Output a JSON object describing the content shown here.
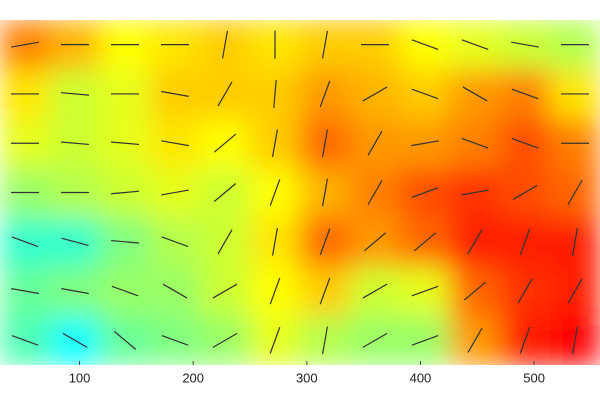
{
  "chart_data": {
    "type": "heatmap-quiver",
    "xlim": [
      30,
      558
    ],
    "xticks": [
      100,
      200,
      300,
      400,
      500
    ],
    "vlim": [
      0,
      1
    ],
    "colormap": [
      "#00ffff",
      "#80ff80",
      "#ffff00",
      "#ff8000",
      "#ff0000"
    ],
    "z": [
      [
        0.75,
        0.65,
        0.5,
        0.55,
        0.6,
        0.55,
        0.6,
        0.6,
        0.5,
        0.45,
        0.4,
        0.35
      ],
      [
        0.55,
        0.4,
        0.45,
        0.6,
        0.6,
        0.6,
        0.7,
        0.65,
        0.6,
        0.7,
        0.75,
        0.55
      ],
      [
        0.45,
        0.4,
        0.45,
        0.55,
        0.5,
        0.6,
        0.8,
        0.7,
        0.7,
        0.75,
        0.85,
        0.75
      ],
      [
        0.3,
        0.35,
        0.4,
        0.45,
        0.4,
        0.5,
        0.65,
        0.75,
        0.85,
        0.9,
        0.85,
        0.8
      ],
      [
        0.1,
        0.1,
        0.25,
        0.35,
        0.4,
        0.55,
        0.8,
        0.7,
        0.8,
        0.95,
        0.95,
        0.95
      ],
      [
        0.2,
        0.25,
        0.3,
        0.3,
        0.4,
        0.5,
        0.6,
        0.4,
        0.45,
        0.8,
        0.9,
        0.95
      ],
      [
        0.15,
        0.0,
        0.2,
        0.25,
        0.3,
        0.45,
        0.35,
        0.3,
        0.3,
        0.7,
        0.95,
        1.0
      ]
    ],
    "angles": [
      [
        10,
        0,
        0,
        0,
        80,
        90,
        80,
        0,
        -20,
        -20,
        -10,
        0
      ],
      [
        0,
        -5,
        0,
        -10,
        60,
        85,
        70,
        30,
        -20,
        -30,
        -20,
        0
      ],
      [
        0,
        -5,
        -5,
        -10,
        40,
        80,
        80,
        60,
        10,
        -20,
        -20,
        0
      ],
      [
        0,
        0,
        5,
        10,
        40,
        70,
        80,
        60,
        20,
        10,
        30,
        60
      ],
      [
        -20,
        -15,
        -5,
        -20,
        60,
        80,
        70,
        40,
        40,
        60,
        70,
        80
      ],
      [
        -10,
        -10,
        -20,
        -30,
        30,
        70,
        70,
        30,
        20,
        40,
        60,
        60
      ],
      [
        -20,
        -30,
        -40,
        -20,
        30,
        70,
        80,
        30,
        20,
        60,
        70,
        80
      ]
    ],
    "vector_color": "#333333"
  }
}
